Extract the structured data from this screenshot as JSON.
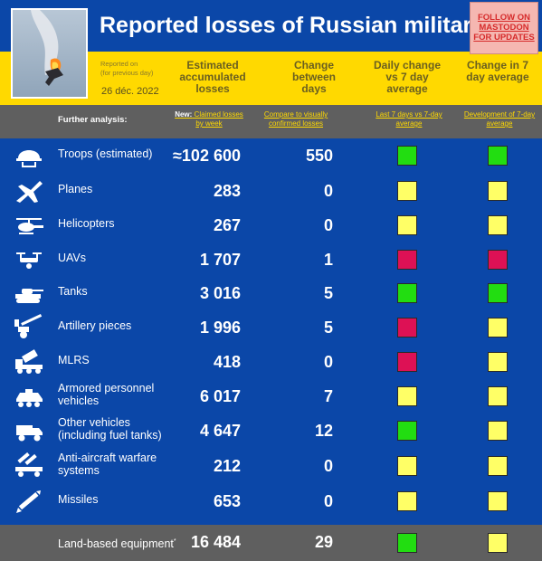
{
  "header": {
    "title": "Reported losses of Russian military",
    "mastodon_label": "FOLLOW ON MASTODON FOR UPDATES",
    "reported_line1": "Reported on",
    "reported_line2": "(for previous day)",
    "date": "26 déc. 2022"
  },
  "columns": {
    "estimated": "Estimated accumulated losses",
    "change": "Change between days",
    "daily": "Daily change vs 7 day average",
    "weekly": "Change in 7 day average"
  },
  "analysis": {
    "label": "Further analysis:",
    "new_prefix": "New:",
    "claimed_link": "Claimed losses by week",
    "compare_link": "Compare to visually confirmed losses",
    "last7_link": "Last 7 days vs 7-day average",
    "dev_link": "Development of 7-day average"
  },
  "colors": {
    "green": "#22dd11",
    "yellow": "#ffff66",
    "red": "#dd1155"
  },
  "rows": [
    {
      "icon": "helmet-icon",
      "label": "Troops (estimated)",
      "value": "≈102 600",
      "change": "550",
      "daily": "green",
      "weekly": "green"
    },
    {
      "icon": "jet-icon",
      "label": "Planes",
      "value": "283",
      "change": "0",
      "daily": "yellow",
      "weekly": "yellow"
    },
    {
      "icon": "helicopter-icon",
      "label": "Helicopters",
      "value": "267",
      "change": "0",
      "daily": "yellow",
      "weekly": "yellow"
    },
    {
      "icon": "drone-icon",
      "label": "UAVs",
      "value": "1 707",
      "change": "1",
      "daily": "red",
      "weekly": "red"
    },
    {
      "icon": "tank-icon",
      "label": "Tanks",
      "value": "3 016",
      "change": "5",
      "daily": "green",
      "weekly": "green"
    },
    {
      "icon": "artillery-icon",
      "label": "Artillery pieces",
      "value": "1 996",
      "change": "5",
      "daily": "red",
      "weekly": "yellow"
    },
    {
      "icon": "mlrs-icon",
      "label": "MLRS",
      "value": "418",
      "change": "0",
      "daily": "red",
      "weekly": "yellow"
    },
    {
      "icon": "apc-icon",
      "label": "Armored personnel vehicles",
      "value": "6 017",
      "change": "7",
      "daily": "yellow",
      "weekly": "yellow"
    },
    {
      "icon": "truck-icon",
      "label": "Other vehicles (including fuel tanks)",
      "value": "4 647",
      "change": "12",
      "daily": "green",
      "weekly": "yellow"
    },
    {
      "icon": "anti-aircraft-icon",
      "label": "Anti-aircraft warfare systems",
      "value": "212",
      "change": "0",
      "daily": "yellow",
      "weekly": "yellow"
    },
    {
      "icon": "missile-icon",
      "label": "Missiles",
      "value": "653",
      "change": "0",
      "daily": "yellow",
      "weekly": "yellow"
    }
  ],
  "footer": {
    "label": "Land-based equipment",
    "label_mark": "*",
    "value": "16 484",
    "change": "29",
    "daily": "green",
    "weekly": "yellow"
  }
}
